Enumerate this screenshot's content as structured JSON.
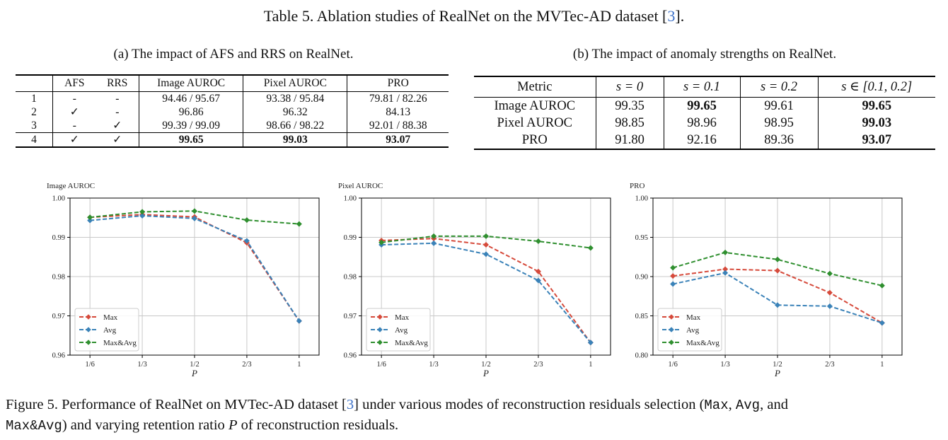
{
  "table_title": {
    "prefix": "Table 5. Ablation studies of RealNet on the MVTec-AD dataset [",
    "ref": "3",
    "suffix": "]."
  },
  "table_a": {
    "caption": "(a) The impact of AFS and RRS on RealNet.",
    "headers": [
      "",
      "AFS",
      "RRS",
      "Image AUROC",
      "Pixel AUROC",
      "PRO"
    ],
    "rows": [
      [
        "1",
        "-",
        "-",
        "94.46 / 95.67",
        "93.38 / 95.84",
        "79.81 / 82.26"
      ],
      [
        "2",
        "✓",
        "-",
        "96.86",
        "96.32",
        "84.13"
      ],
      [
        "3",
        "-",
        "✓",
        "99.39 / 99.09",
        "98.66 / 98.22",
        "92.01 / 88.38"
      ],
      [
        "4",
        "✓",
        "✓",
        "99.65",
        "99.03",
        "93.07"
      ]
    ]
  },
  "table_b": {
    "caption": "(b) The impact of anomaly strengths on RealNet.",
    "headers": [
      "Metric",
      "s = 0",
      "s = 0.1",
      "s = 0.2",
      "s ∈ [0.1, 0.2]"
    ],
    "rows": [
      [
        "Image AUROC",
        "99.35",
        "99.65",
        "99.61",
        "99.65"
      ],
      [
        "Pixel AUROC",
        "98.85",
        "98.96",
        "98.95",
        "99.03"
      ],
      [
        "PRO",
        "91.80",
        "92.16",
        "89.36",
        "93.07"
      ]
    ]
  },
  "chart_data": [
    {
      "type": "line",
      "title": "Image AUROC",
      "xlabel": "P",
      "categories": [
        "1/6",
        "1/3",
        "1/2",
        "2/3",
        "1"
      ],
      "ylim": [
        0.96,
        1.0
      ],
      "yticks": [
        "0.96",
        "0.97",
        "0.98",
        "0.99",
        "1.00"
      ],
      "grid": true,
      "legend": "lower-left",
      "series": [
        {
          "name": "Max",
          "color": "#d64a3b",
          "values": [
            0.9951,
            0.9958,
            0.9952,
            0.9886,
            0.9687
          ]
        },
        {
          "name": "Avg",
          "color": "#3a82b8",
          "values": [
            0.9943,
            0.9955,
            0.9948,
            0.9891,
            0.9687
          ]
        },
        {
          "name": "Max&Avg",
          "color": "#2f8f2f",
          "values": [
            0.9951,
            0.9965,
            0.9967,
            0.9944,
            0.9934
          ]
        }
      ]
    },
    {
      "type": "line",
      "title": "Pixel AUROC",
      "xlabel": "P",
      "categories": [
        "1/6",
        "1/3",
        "1/2",
        "2/3",
        "1"
      ],
      "ylim": [
        0.96,
        1.0
      ],
      "yticks": [
        "0.96",
        "0.97",
        "0.98",
        "0.99",
        "1.00"
      ],
      "grid": true,
      "legend": "lower-left",
      "series": [
        {
          "name": "Max",
          "color": "#d64a3b",
          "values": [
            0.9892,
            0.9897,
            0.9881,
            0.9813,
            0.9632
          ]
        },
        {
          "name": "Avg",
          "color": "#3a82b8",
          "values": [
            0.9881,
            0.9885,
            0.9857,
            0.979,
            0.9632
          ]
        },
        {
          "name": "Max&Avg",
          "color": "#2f8f2f",
          "values": [
            0.9887,
            0.9903,
            0.9903,
            0.989,
            0.9873
          ]
        }
      ]
    },
    {
      "type": "line",
      "title": "PRO",
      "xlabel": "P",
      "categories": [
        "1/6",
        "1/3",
        "1/2",
        "2/3",
        "1"
      ],
      "ylim": [
        0.8,
        1.0
      ],
      "yticks": [
        "0.80",
        "0.85",
        "0.90",
        "0.95",
        "1.00"
      ],
      "grid": true,
      "legend": "lower-left",
      "series": [
        {
          "name": "Max",
          "color": "#d64a3b",
          "values": [
            0.9008,
            0.9095,
            0.9076,
            0.8795,
            0.841
          ]
        },
        {
          "name": "Avg",
          "color": "#3a82b8",
          "values": [
            0.8905,
            0.9047,
            0.8637,
            0.8623,
            0.841
          ]
        },
        {
          "name": "Max&Avg",
          "color": "#2f8f2f",
          "values": [
            0.9113,
            0.9307,
            0.9218,
            0.9038,
            0.8885
          ]
        }
      ]
    }
  ],
  "figure_caption": {
    "t1": "Figure 5. Performance of RealNet on MVTec-AD dataset [",
    "ref": "3",
    "t2": "] under various modes of reconstruction residuals selection (",
    "m1": "Max",
    "t3": ", ",
    "m2": "Avg",
    "t4": ", and",
    "m3": "Max&Avg",
    "t5": ") and varying retention ratio ",
    "var": "P",
    "t6": " of reconstruction residuals."
  }
}
